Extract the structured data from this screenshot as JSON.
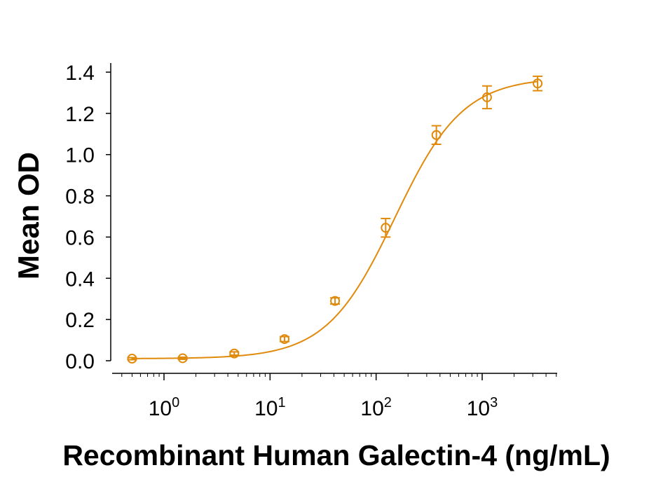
{
  "chart_data": {
    "type": "scatter",
    "title": "",
    "xlabel": "Recombinant Human Galectin-4 (ng/mL)",
    "ylabel": "Mean OD",
    "x_scale": "log",
    "xlim": [
      0.3,
      5000
    ],
    "ylim": [
      0,
      1.4
    ],
    "grid": false,
    "color": "#E08A0C",
    "y_ticks": [
      {
        "value": 0.0,
        "label": "0.0"
      },
      {
        "value": 0.2,
        "label": "0.2"
      },
      {
        "value": 0.4,
        "label": "0.4"
      },
      {
        "value": 0.6,
        "label": "0.6"
      },
      {
        "value": 0.8,
        "label": "0.8"
      },
      {
        "value": 1.0,
        "label": "1.0"
      },
      {
        "value": 1.2,
        "label": "1.2"
      },
      {
        "value": 1.4,
        "label": "1.4"
      }
    ],
    "x_ticks": [
      {
        "value": 1,
        "base": "10",
        "exp": "0"
      },
      {
        "value": 10,
        "base": "10",
        "exp": "1"
      },
      {
        "value": 100,
        "base": "10",
        "exp": "2"
      },
      {
        "value": 1000,
        "base": "10",
        "exp": "3"
      }
    ],
    "series": [
      {
        "x": [
          0.5,
          1.5,
          4.6,
          13.7,
          41,
          123,
          370,
          1111,
          3333
        ],
        "y": [
          0.01,
          0.012,
          0.035,
          0.105,
          0.29,
          0.645,
          1.095,
          1.278,
          1.345
        ],
        "error": [
          0.005,
          0.005,
          0.008,
          0.012,
          0.015,
          0.045,
          0.045,
          0.055,
          0.035
        ]
      }
    ],
    "fit": {
      "bottom": 0.01,
      "top": 1.375,
      "ec50": 150,
      "hill": 1.35
    }
  }
}
